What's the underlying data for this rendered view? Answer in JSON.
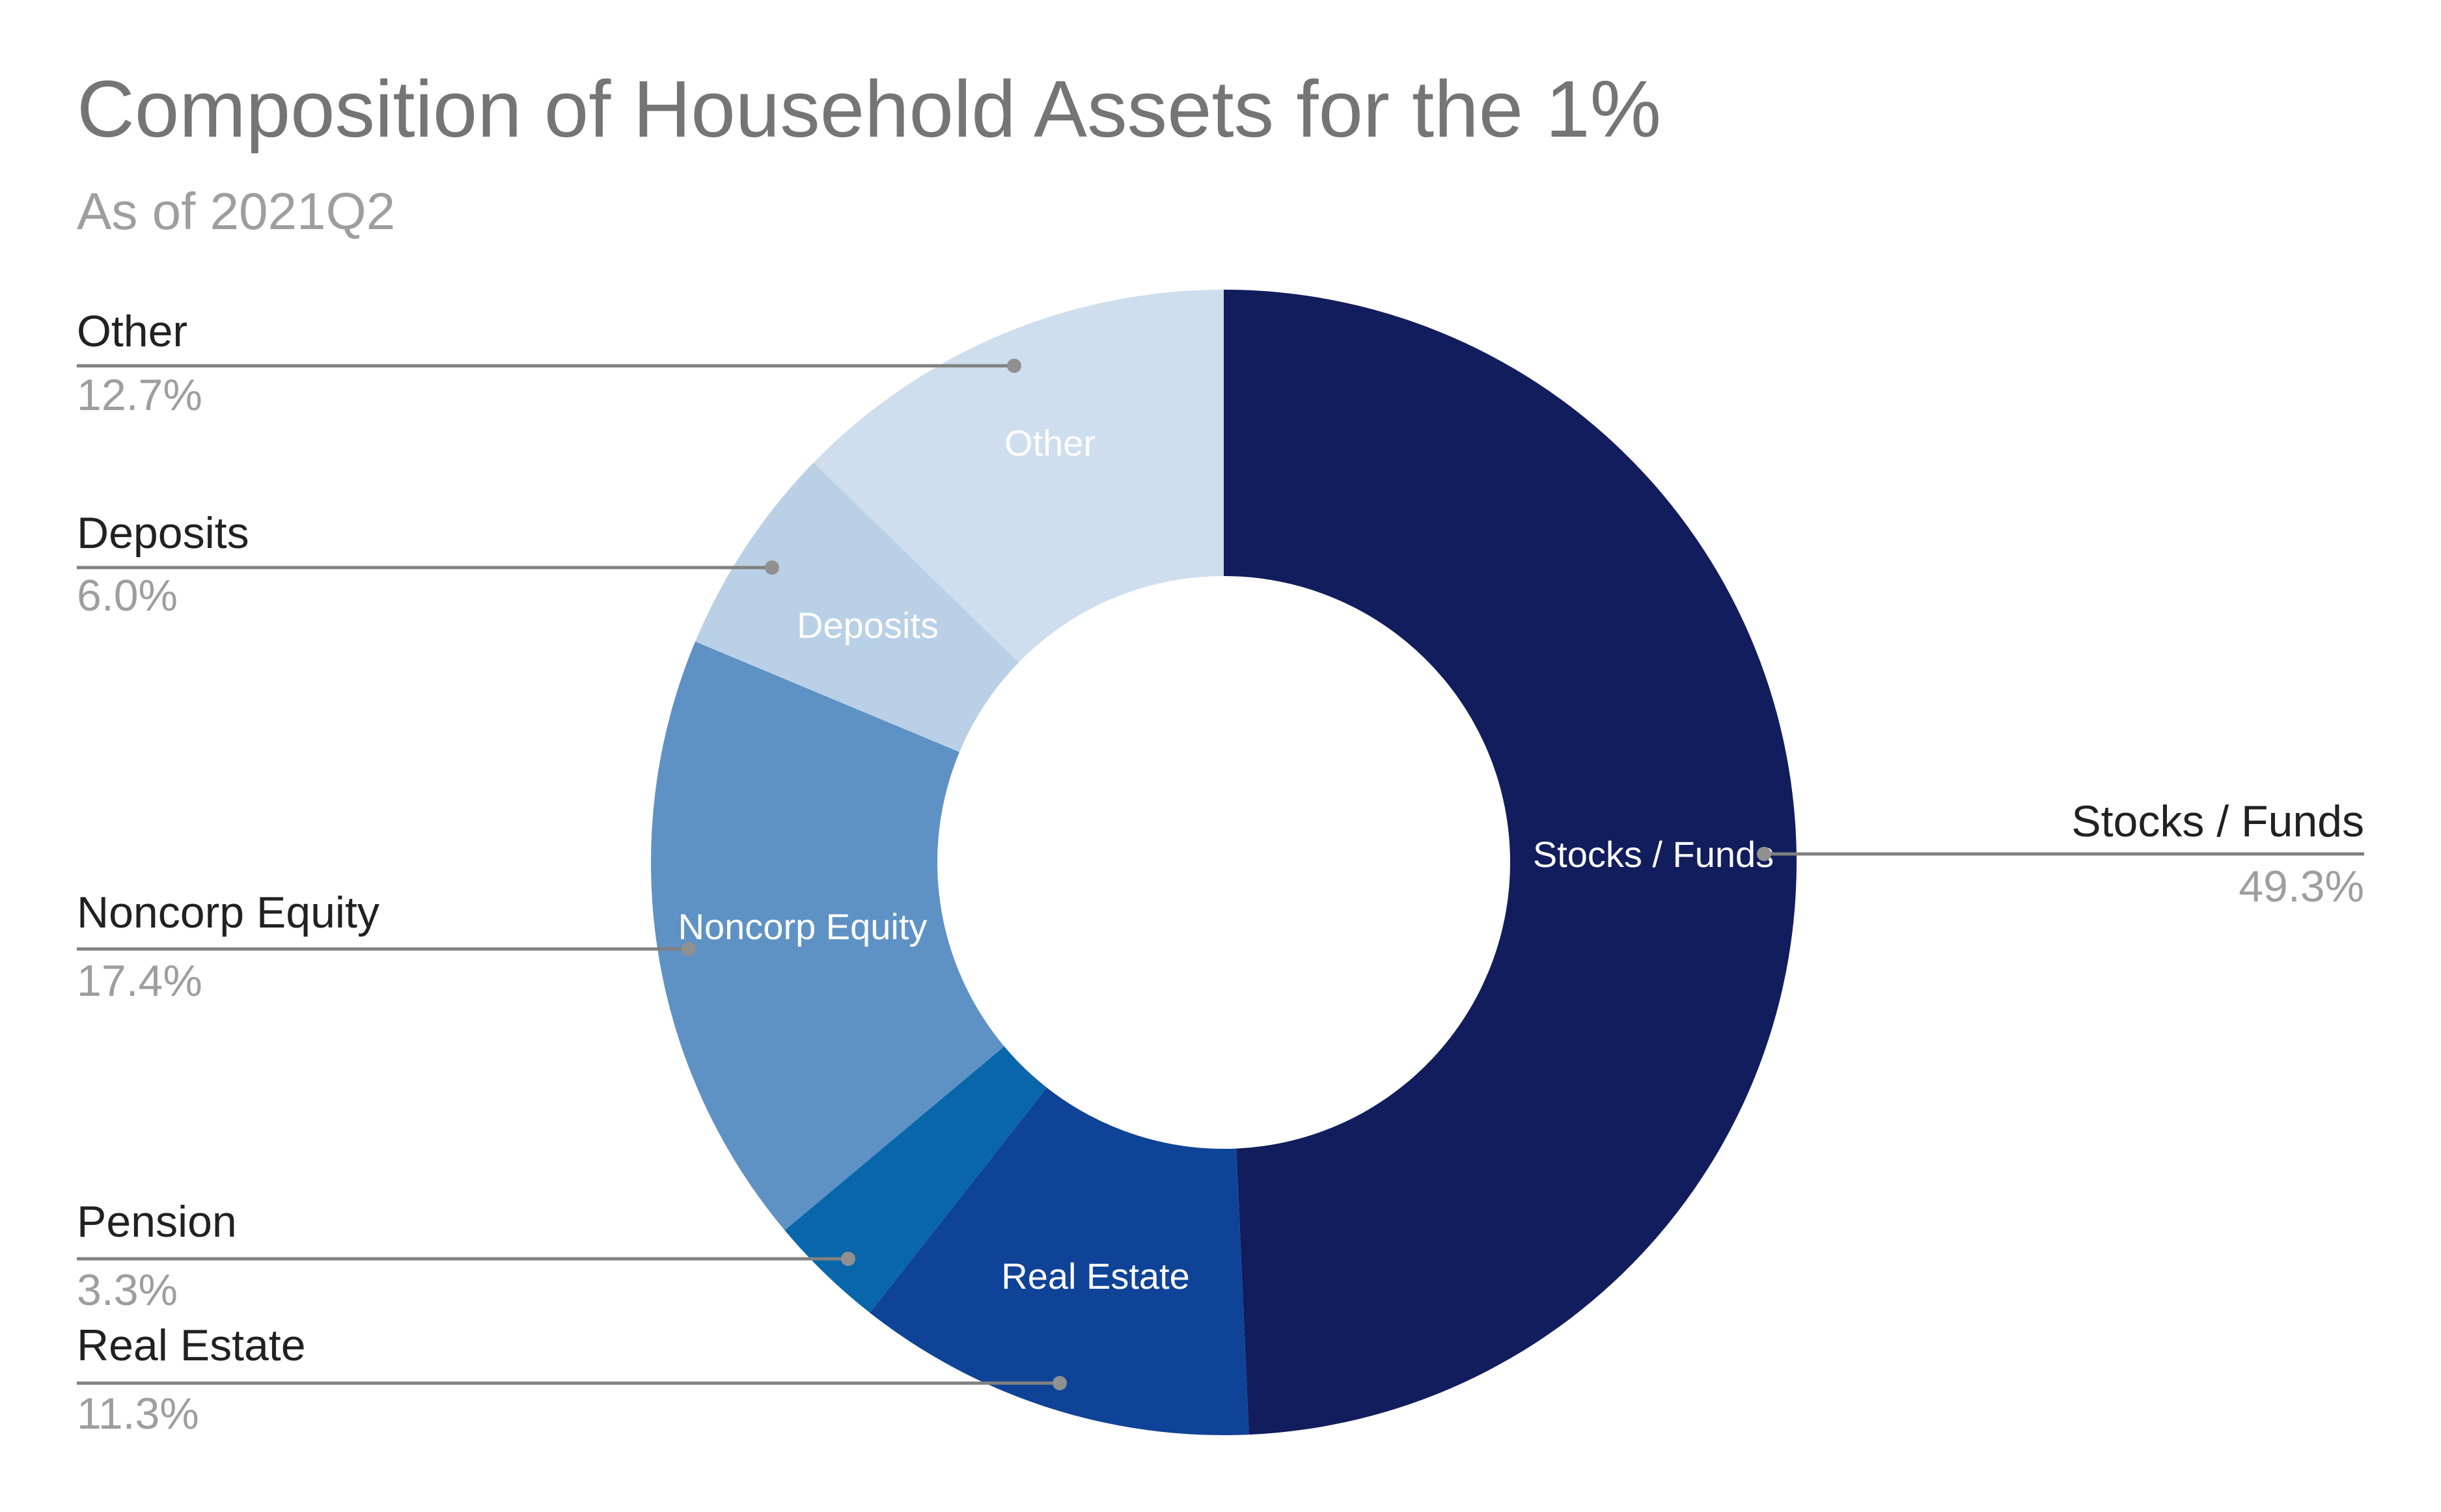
{
  "chart_data": {
    "type": "pie",
    "title": "Composition of Household Assets for the 1%",
    "subtitle": "As of 2021Q2",
    "donut": true,
    "slices": [
      {
        "label": "Stocks / Funds",
        "value": 49.3,
        "value_label": "49.3%",
        "color": "#111d5c",
        "inner_label": "Stocks / Funds",
        "callout_side": "right"
      },
      {
        "label": "Real Estate",
        "value": 11.3,
        "value_label": "11.3%",
        "color": "#0f4397",
        "inner_label": "Real Estate",
        "callout_side": "left"
      },
      {
        "label": "Pension",
        "value": 3.3,
        "value_label": "3.3%",
        "color": "#0a66aa",
        "inner_label": "",
        "callout_side": "left"
      },
      {
        "label": "Noncorp Equity",
        "value": 17.4,
        "value_label": "17.4%",
        "color": "#5e92c5",
        "inner_label": "Noncorp Equity",
        "callout_side": "left"
      },
      {
        "label": "Deposits",
        "value": 6.0,
        "value_label": "6.0%",
        "color": "#b9d0e6",
        "inner_label": "Deposits",
        "callout_side": "left"
      },
      {
        "label": "Other",
        "value": 12.7,
        "value_label": "12.7%",
        "color": "#cfdeee",
        "inner_label": "Other",
        "callout_side": "left"
      }
    ],
    "legend": "none"
  }
}
